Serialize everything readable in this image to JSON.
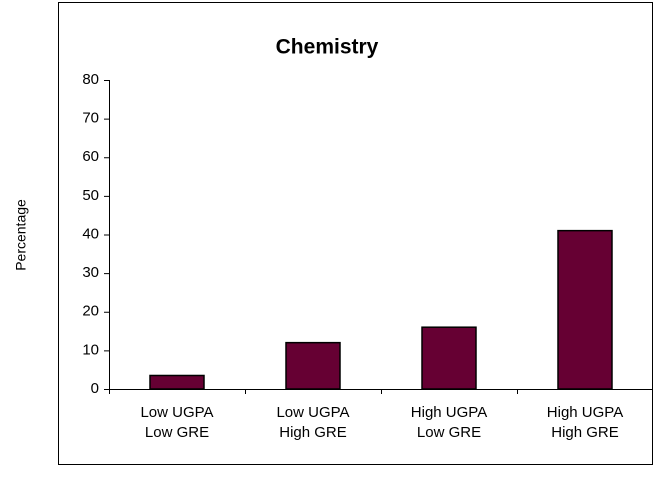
{
  "chart_data": {
    "type": "bar",
    "title": "Chemistry",
    "y_label": "Percentage",
    "categories": [
      [
        "Low UGPA",
        "Low GRE"
      ],
      [
        "Low UGPA",
        "High GRE"
      ],
      [
        "High UGPA",
        "Low GRE"
      ],
      [
        "High UGPA",
        "High GRE"
      ]
    ],
    "values": [
      3.5,
      12,
      16,
      41
    ],
    "color": "#660033",
    "ylim": [
      0,
      80
    ],
    "yticks": [
      0,
      10,
      20,
      30,
      40,
      50,
      60,
      70,
      80
    ],
    "grid": false
  }
}
